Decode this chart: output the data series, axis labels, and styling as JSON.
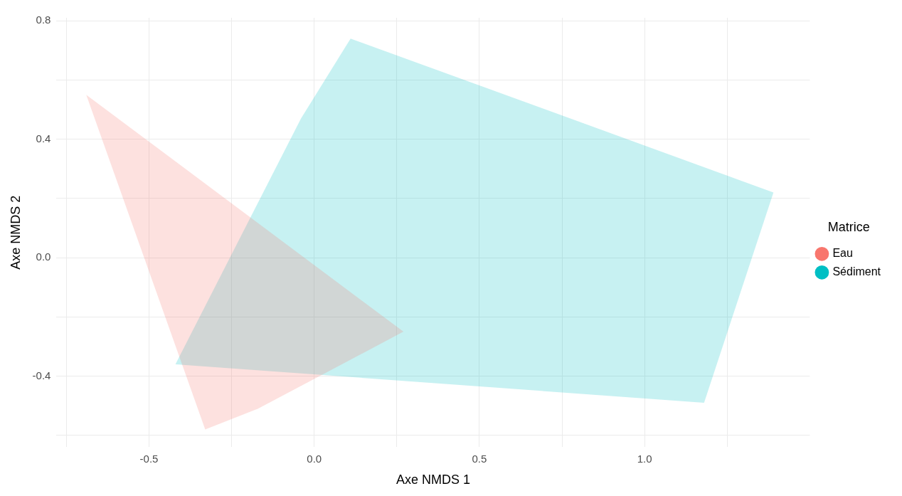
{
  "chart_data": {
    "type": "area",
    "xlabel": "Axe NMDS 1",
    "ylabel": "Axe NMDS 2",
    "legend_title": "Matrice",
    "legend": "right",
    "grid": true,
    "xlim": [
      -0.78,
      1.5
    ],
    "ylim": [
      -0.64,
      0.81
    ],
    "xticks": [
      {
        "value": -0.75,
        "label": null
      },
      {
        "value": -0.5,
        "label": "-0.5"
      },
      {
        "value": -0.25,
        "label": null
      },
      {
        "value": 0,
        "label": "0.0"
      },
      {
        "value": 0.25,
        "label": null
      },
      {
        "value": 0.5,
        "label": "0.5"
      },
      {
        "value": 0.75,
        "label": null
      },
      {
        "value": 1,
        "label": "1.0"
      },
      {
        "value": 1.25,
        "label": null
      }
    ],
    "yticks": [
      {
        "value": -0.6,
        "label": null
      },
      {
        "value": -0.4,
        "label": "-0.4"
      },
      {
        "value": -0.2,
        "label": null
      },
      {
        "value": 0,
        "label": "0.0"
      },
      {
        "value": 0.2,
        "label": null
      },
      {
        "value": 0.4,
        "label": "0.4"
      },
      {
        "value": 0.6,
        "label": null
      },
      {
        "value": 0.8,
        "label": "0.8"
      }
    ],
    "series": [
      {
        "name": "Eau",
        "color": "#f8766d",
        "x": [
          -0.69,
          0.27,
          -0.17,
          -0.33
        ],
        "values": [
          0.55,
          -0.25,
          -0.51,
          -0.58
        ]
      },
      {
        "name": "Sédiment",
        "color": "#00bfc4",
        "x": [
          -0.42,
          -0.04,
          0.11,
          1.39,
          1.18
        ],
        "values": [
          -0.36,
          0.47,
          0.74,
          0.22,
          -0.49
        ]
      }
    ]
  }
}
